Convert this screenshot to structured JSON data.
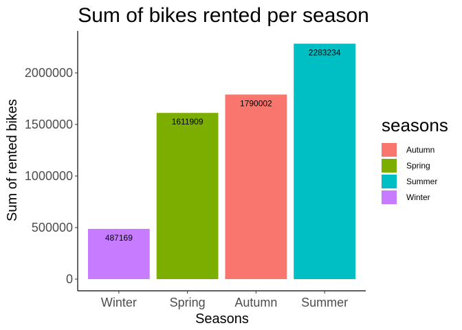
{
  "chart_data": {
    "type": "bar",
    "title": "Sum of bikes rented per season",
    "xlabel": "Seasons",
    "ylabel": "Sum of rented bikes",
    "categories": [
      "Winter",
      "Spring",
      "Autumn",
      "Summer"
    ],
    "values": [
      487169,
      1611909,
      1790002,
      2283234
    ],
    "colors": [
      "#C77CFF",
      "#7CAE00",
      "#F8766D",
      "#00BFC4"
    ],
    "ylim": [
      0,
      2400000
    ],
    "yticks": [
      0,
      500000,
      1000000,
      1500000,
      2000000
    ],
    "ytick_labels": [
      "0",
      "500000",
      "1000000",
      "1500000",
      "2000000"
    ],
    "grid": false,
    "legend": {
      "title": "seasons",
      "placement": "right",
      "entries": [
        {
          "label": "Autumn",
          "color": "#F8766D"
        },
        {
          "label": "Spring",
          "color": "#7CAE00"
        },
        {
          "label": "Summer",
          "color": "#00BFC4"
        },
        {
          "label": "Winter",
          "color": "#C77CFF"
        }
      ]
    }
  }
}
